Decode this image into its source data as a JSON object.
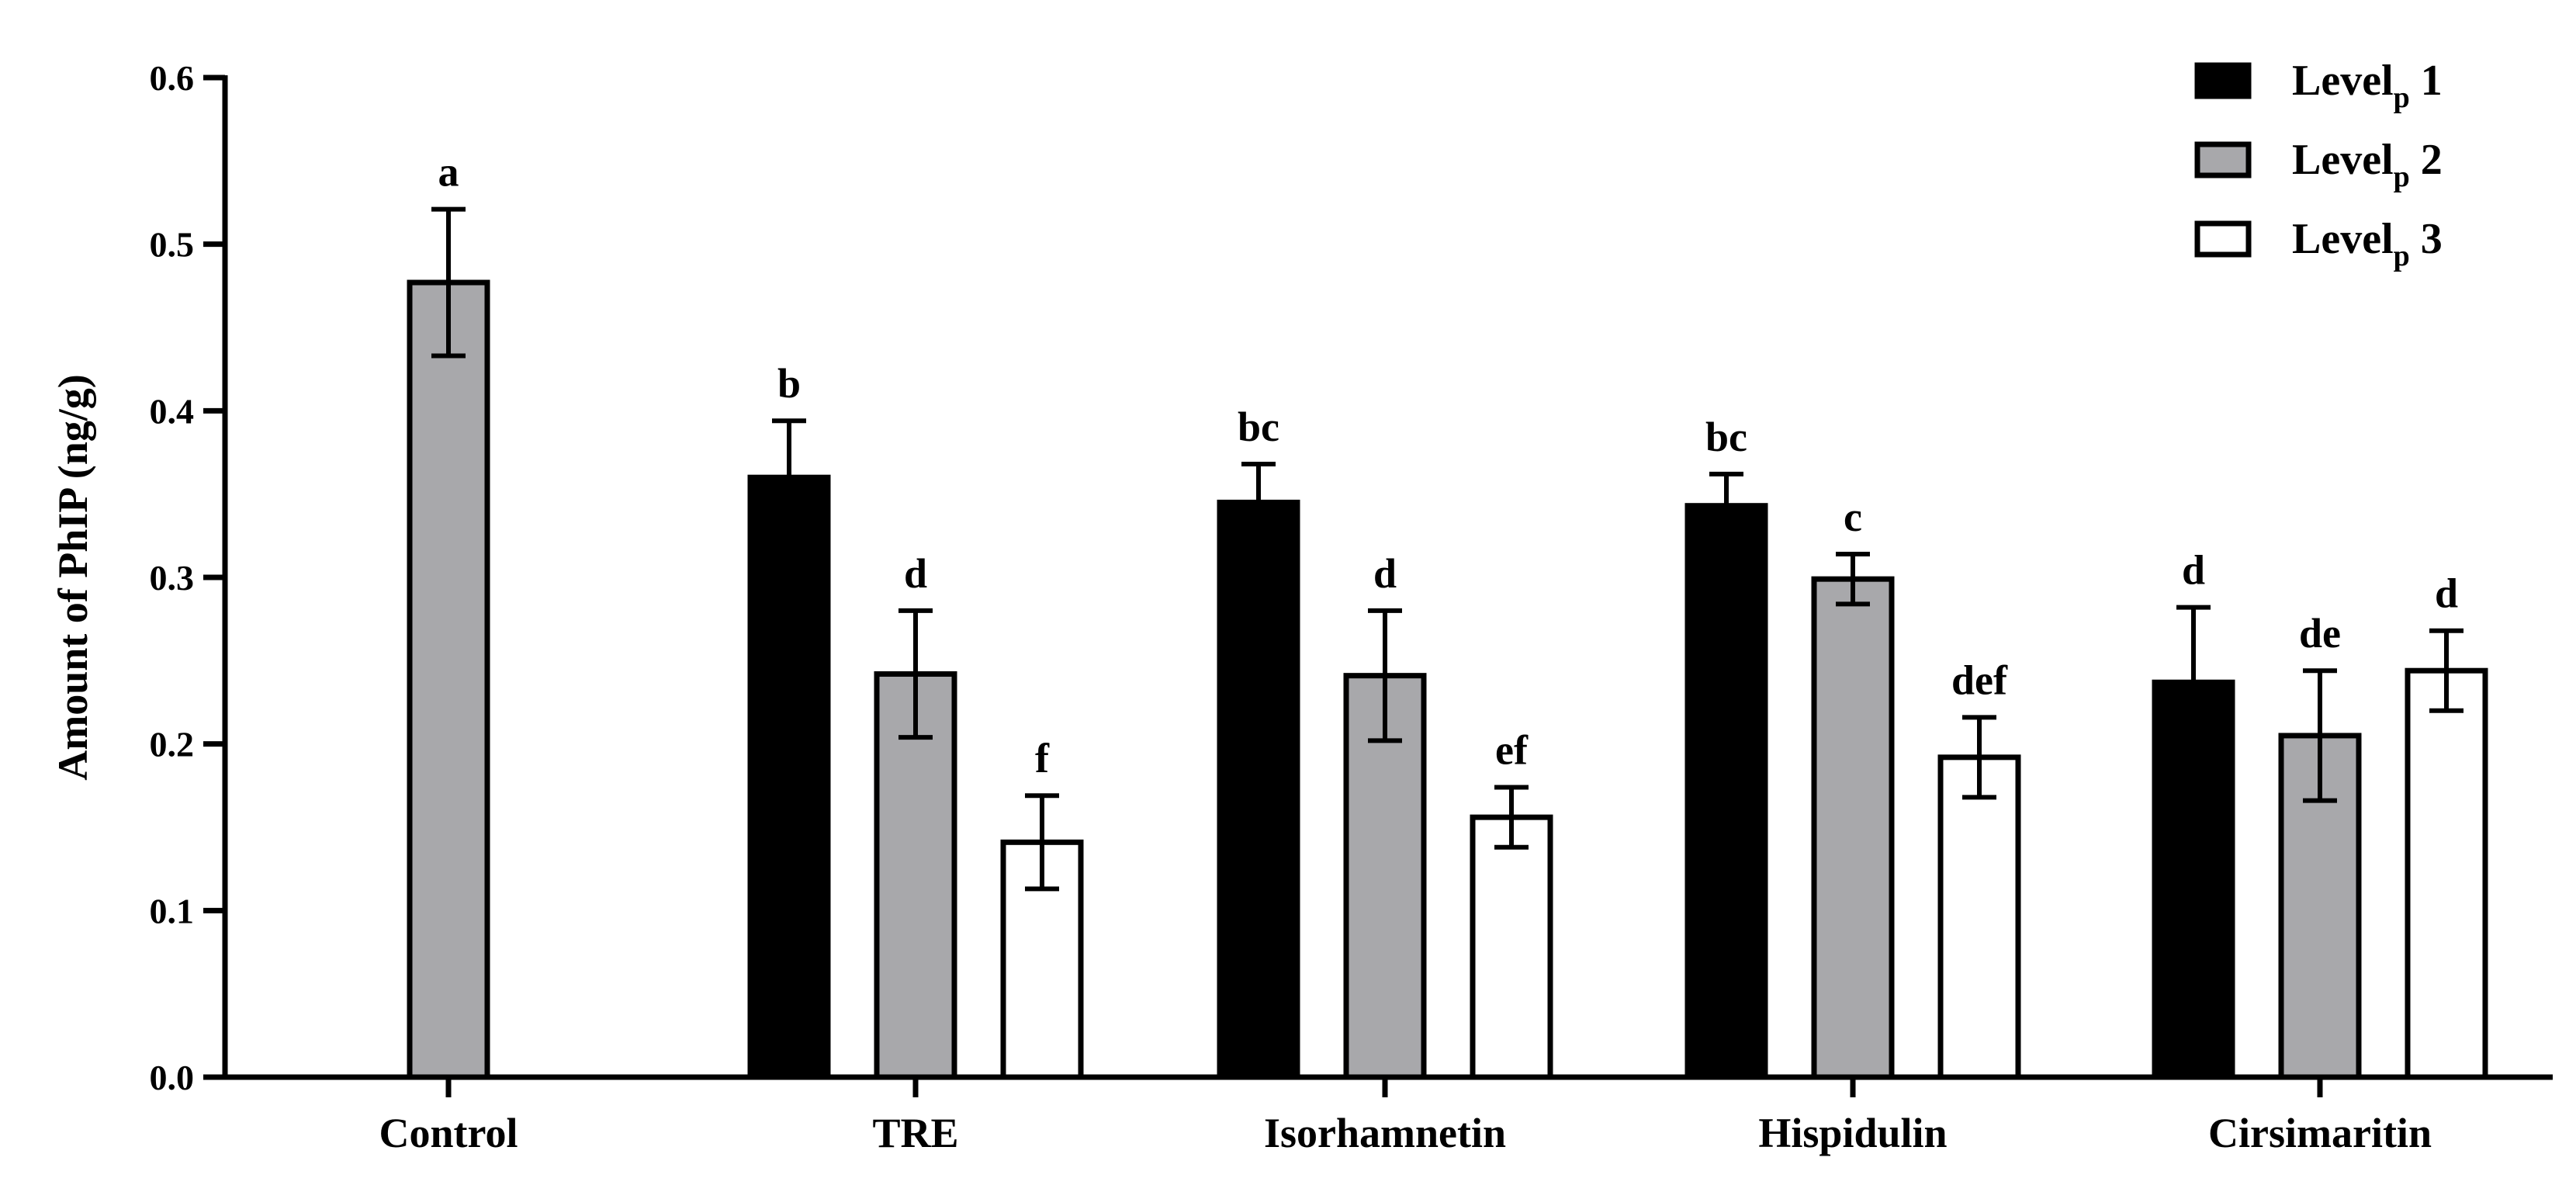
{
  "chart_data": {
    "type": "bar",
    "title": "",
    "xlabel": "",
    "ylabel": "Amount of PhIP (ng/g)",
    "ylim": [
      0,
      0.6
    ],
    "yticks": [
      "0.0",
      "0.1",
      "0.2",
      "0.3",
      "0.4",
      "0.5",
      "0.6"
    ],
    "grid": false,
    "legend_position": "top-right",
    "categories": [
      "Control",
      "TRE",
      "Isorhamnetin",
      "Hispidulin",
      "Cirsimaritin"
    ],
    "series": [
      {
        "name": "Level",
        "subscript": "p",
        "suffix": "1",
        "color": "#000000",
        "values": [
          null,
          0.36,
          0.345,
          0.343,
          0.237
        ],
        "errors": [
          null,
          0.034,
          0.023,
          0.019,
          0.045
        ],
        "letters": [
          null,
          "b",
          "bc",
          "bc",
          "d"
        ]
      },
      {
        "name": "Level",
        "subscript": "p",
        "suffix": "2",
        "color": "#a8a8ab",
        "values": [
          0.477,
          0.242,
          0.241,
          0.299,
          0.205
        ],
        "errors": [
          0.044,
          0.038,
          0.039,
          0.015,
          0.039
        ],
        "letters": [
          "a",
          "d",
          "d",
          "c",
          "de"
        ]
      },
      {
        "name": "Level",
        "subscript": "p",
        "suffix": "3",
        "color": "#ffffff",
        "values": [
          null,
          0.141,
          0.156,
          0.192,
          0.244
        ],
        "errors": [
          null,
          0.028,
          0.018,
          0.024,
          0.024
        ],
        "letters": [
          null,
          "f",
          "ef",
          "def",
          "d"
        ]
      }
    ]
  }
}
